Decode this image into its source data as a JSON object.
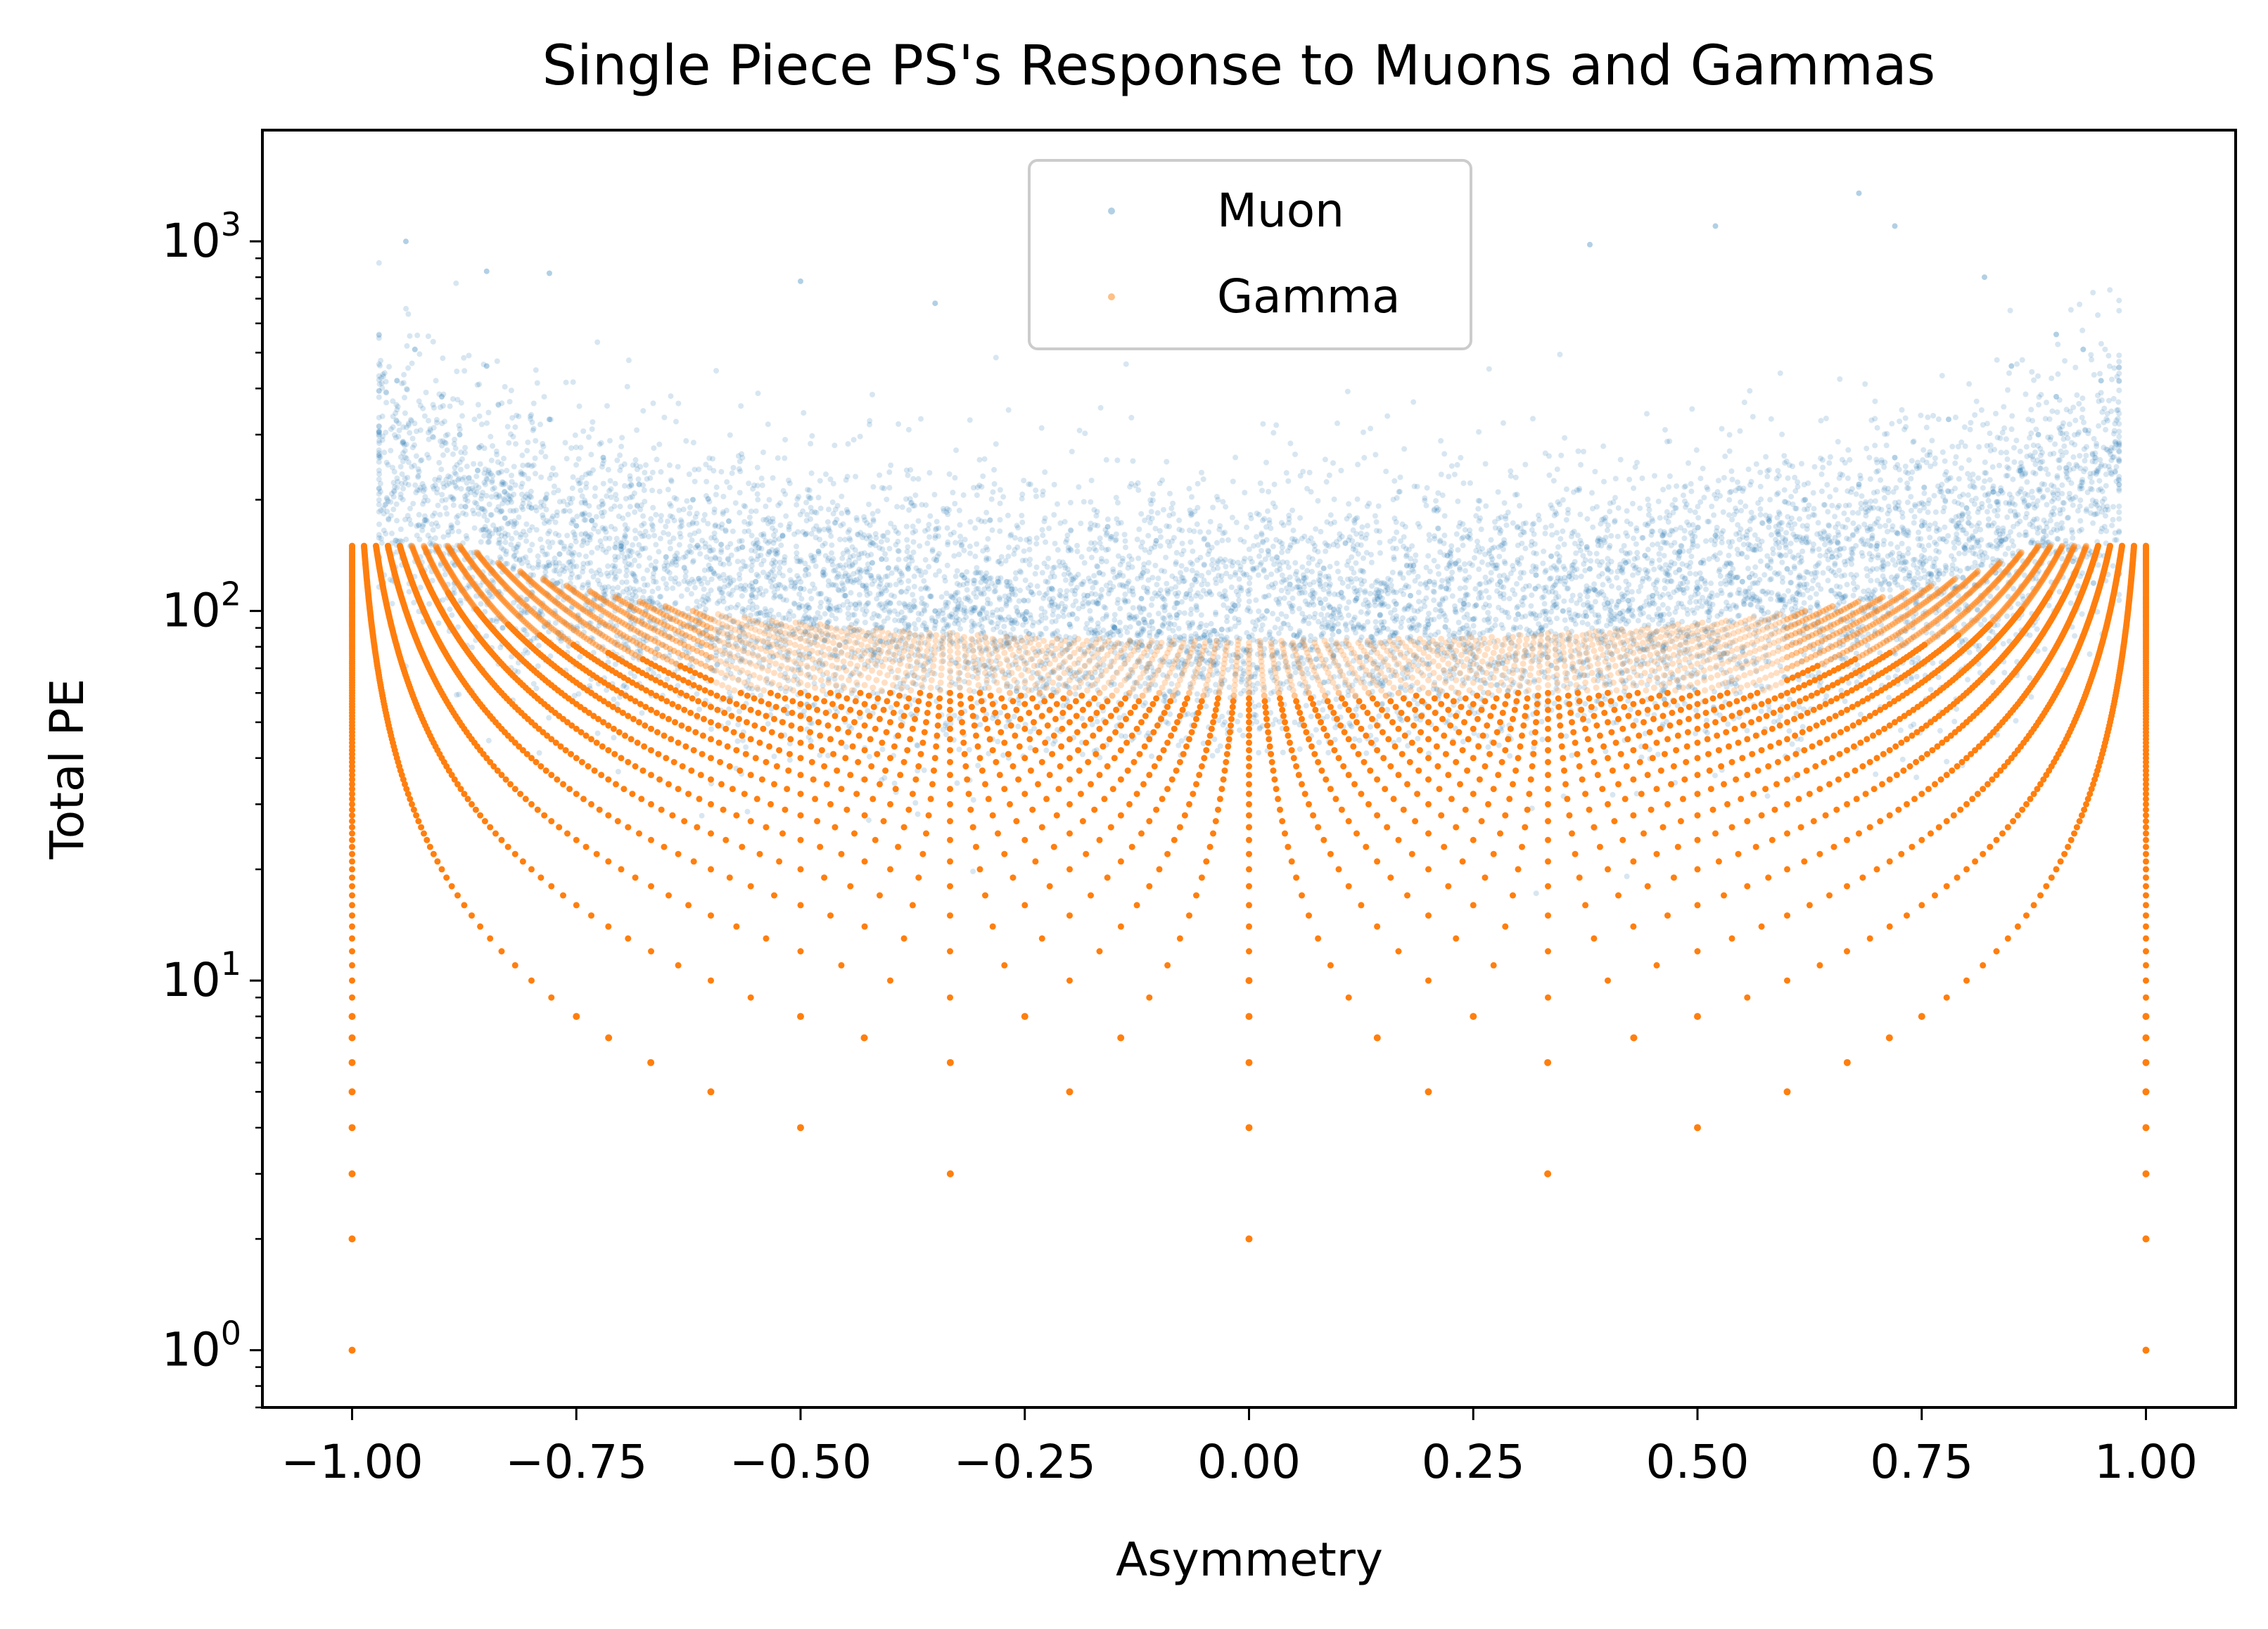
{
  "chart_data": {
    "type": "scatter",
    "title": "Single Piece PS's Response to Muons and Gammas",
    "xlabel": "Asymmetry",
    "ylabel": "Total PE",
    "xlim": [
      -1.1,
      1.1
    ],
    "ylim": [
      0.7,
      2000
    ],
    "yscale": "log",
    "xticks": [
      -1.0,
      -0.75,
      -0.5,
      -0.25,
      0.0,
      0.25,
      0.5,
      0.75,
      1.0
    ],
    "xtick_labels": [
      "−1.00",
      "−0.75",
      "−0.50",
      "−0.25",
      "0.00",
      "0.25",
      "0.50",
      "0.75",
      "1.00"
    ],
    "yticks_major": [
      1,
      10,
      100,
      1000
    ],
    "ytick_labels": [
      {
        "base": "10",
        "exp": "0"
      },
      {
        "base": "10",
        "exp": "1"
      },
      {
        "base": "10",
        "exp": "2"
      },
      {
        "base": "10",
        "exp": "3"
      }
    ],
    "legend": {
      "position": "upper-center"
    },
    "colors": {
      "muon": "#1f77b4",
      "gamma": "#ff7f0e"
    },
    "series": [
      {
        "name": "Muon",
        "color": "#1f77b4",
        "alpha": 0.18,
        "description_note": "",
        "points": [
          [
            -0.95,
            420
          ],
          [
            -0.93,
            510
          ],
          [
            -0.9,
            380
          ],
          [
            -0.88,
            300
          ],
          [
            -0.86,
            240
          ],
          [
            -0.85,
            460
          ],
          [
            -0.83,
            210
          ],
          [
            -0.8,
            190
          ],
          [
            -0.78,
            330
          ],
          [
            -0.75,
            170
          ],
          [
            -0.72,
            260
          ],
          [
            -0.7,
            150
          ],
          [
            -0.68,
            220
          ],
          [
            -0.65,
            140
          ],
          [
            -0.62,
            200
          ],
          [
            -0.6,
            130
          ],
          [
            -0.58,
            175
          ],
          [
            -0.55,
            120
          ],
          [
            -0.52,
            160
          ],
          [
            -0.5,
            115
          ],
          [
            -0.48,
            145
          ],
          [
            -0.45,
            110
          ],
          [
            -0.42,
            135
          ],
          [
            -0.4,
            105
          ],
          [
            -0.38,
            130
          ],
          [
            -0.35,
            100
          ],
          [
            -0.32,
            125
          ],
          [
            -0.3,
            98
          ],
          [
            -0.28,
            120
          ],
          [
            -0.25,
            95
          ],
          [
            -0.22,
            115
          ],
          [
            -0.2,
            92
          ],
          [
            -0.18,
            110
          ],
          [
            -0.15,
            90
          ],
          [
            -0.12,
            108
          ],
          [
            -0.1,
            88
          ],
          [
            -0.08,
            105
          ],
          [
            -0.05,
            86
          ],
          [
            -0.02,
            100
          ],
          [
            0.0,
            85
          ],
          [
            0.02,
            100
          ],
          [
            0.05,
            86
          ],
          [
            0.08,
            105
          ],
          [
            0.1,
            88
          ],
          [
            0.12,
            108
          ],
          [
            0.15,
            90
          ],
          [
            0.18,
            110
          ],
          [
            0.2,
            92
          ],
          [
            0.22,
            115
          ],
          [
            0.25,
            95
          ],
          [
            0.28,
            120
          ],
          [
            0.3,
            98
          ],
          [
            0.32,
            125
          ],
          [
            0.35,
            100
          ],
          [
            0.38,
            130
          ],
          [
            0.4,
            105
          ],
          [
            0.42,
            135
          ],
          [
            0.45,
            110
          ],
          [
            0.48,
            145
          ],
          [
            0.5,
            115
          ],
          [
            0.52,
            160
          ],
          [
            0.55,
            120
          ],
          [
            0.58,
            175
          ],
          [
            0.6,
            130
          ],
          [
            0.62,
            200
          ],
          [
            0.65,
            140
          ],
          [
            0.68,
            220
          ],
          [
            0.7,
            150
          ],
          [
            0.72,
            260
          ],
          [
            0.75,
            170
          ],
          [
            0.78,
            330
          ],
          [
            0.8,
            190
          ],
          [
            0.83,
            210
          ],
          [
            0.85,
            460
          ],
          [
            0.86,
            240
          ],
          [
            0.88,
            300
          ],
          [
            0.9,
            380
          ],
          [
            0.93,
            510
          ],
          [
            0.95,
            420
          ],
          [
            -0.94,
            1000
          ],
          [
            -0.85,
            830
          ],
          [
            -0.78,
            820
          ],
          [
            -0.5,
            780
          ],
          [
            -0.35,
            680
          ],
          [
            0.38,
            980
          ],
          [
            0.52,
            1100
          ],
          [
            0.68,
            1350
          ],
          [
            0.72,
            1100
          ],
          [
            0.82,
            800
          ],
          [
            0.9,
            560
          ]
        ]
      },
      {
        "name": "Gamma",
        "color": "#ff7f0e",
        "alpha": 1.0,
        "description_note": "",
        "points": [
          [
            -1.0,
            1
          ],
          [
            -1.0,
            2
          ],
          [
            -1.0,
            3
          ],
          [
            -1.0,
            4
          ],
          [
            -1.0,
            5
          ],
          [
            -1.0,
            6
          ],
          [
            -1.0,
            7
          ],
          [
            -1.0,
            8
          ],
          [
            0.0,
            2
          ],
          [
            0.0,
            4
          ],
          [
            0.0,
            6
          ],
          [
            0.0,
            8
          ],
          [
            0.0,
            10
          ],
          [
            1.0,
            1
          ],
          [
            1.0,
            2
          ],
          [
            1.0,
            3
          ],
          [
            1.0,
            4
          ],
          [
            1.0,
            5
          ],
          [
            1.0,
            6
          ],
          [
            1.0,
            7
          ],
          [
            1.0,
            8
          ],
          [
            -0.333,
            3
          ],
          [
            0.333,
            3
          ],
          [
            -0.5,
            4
          ],
          [
            0.5,
            4
          ],
          [
            -0.6,
            5
          ],
          [
            0.6,
            5
          ],
          [
            -0.2,
            5
          ],
          [
            0.2,
            5
          ],
          [
            -0.667,
            6
          ],
          [
            0.667,
            6
          ],
          [
            -0.333,
            6
          ],
          [
            0.333,
            6
          ],
          [
            -0.714,
            7
          ],
          [
            0.714,
            7
          ],
          [
            -0.429,
            7
          ],
          [
            0.429,
            7
          ],
          [
            -0.143,
            7
          ],
          [
            0.143,
            7
          ],
          [
            -0.75,
            8
          ],
          [
            0.75,
            8
          ],
          [
            -0.5,
            8
          ],
          [
            0.5,
            8
          ],
          [
            -0.25,
            8
          ],
          [
            0.25,
            8
          ]
        ]
      }
    ]
  }
}
